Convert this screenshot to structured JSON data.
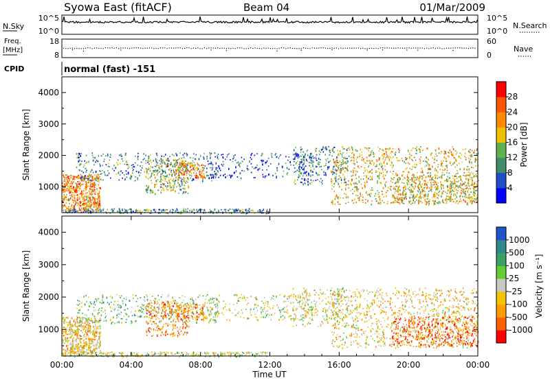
{
  "header": {
    "station": "Syowa East (fitACF)",
    "beam": "Beam 04",
    "date": "01/Mar/2009"
  },
  "noise_panel": {
    "left_label": "N.Sky",
    "left_ticks": [
      "10^5",
      "10^0"
    ],
    "right_ticks": [
      "10^5",
      "10^0"
    ],
    "right_label": "N.Search"
  },
  "freq_panel": {
    "left_label_line1": "Freq.",
    "left_label_line2": "[MHz]",
    "left_ticks": [
      "18",
      "8"
    ],
    "right_ticks": [
      "60",
      "0"
    ],
    "right_label": "Nave"
  },
  "cpid": {
    "label": "CPID",
    "value": "normal (fast) -151"
  },
  "x_axis": {
    "tick_labels": [
      "00:00",
      "04:00",
      "08:00",
      "12:00",
      "16:00",
      "20:00",
      "00:00"
    ],
    "tick_hours": [
      0,
      4,
      8,
      12,
      16,
      20,
      24
    ],
    "title": "Time UT"
  },
  "colors": {
    "power_scale": [
      "#0000ff",
      "#1e4fc8",
      "#3c8f6a",
      "#5fb34c",
      "#f0c000",
      "#ff8c00",
      "#ff5500",
      "#ff0000"
    ],
    "velocity_scale": [
      "#ff0000",
      "#ff6000",
      "#ff9c00",
      "#f5c300",
      "#c8c8c8",
      "#66cc33",
      "#3aa06a",
      "#2f8a8a",
      "#1f55c8"
    ]
  },
  "chart_data": [
    {
      "type": "heatmap",
      "name": "power",
      "ylabel": "Slant Range [km]",
      "y_ticks": [
        1000,
        2000,
        3000,
        4000
      ],
      "ylim": [
        180,
        4500
      ],
      "xlim": [
        0,
        24
      ],
      "colorbar": {
        "label": "Power [dB]",
        "ticks": [
          "28",
          "24",
          "20",
          "16",
          "12",
          "8",
          "4"
        ],
        "range": [
          0,
          30
        ]
      }
    },
    {
      "type": "heatmap",
      "name": "velocity",
      "ylabel": "Slant Range [km]",
      "y_ticks": [
        1000,
        2000,
        3000,
        4000
      ],
      "ylim": [
        180,
        4500
      ],
      "xlim": [
        0,
        24
      ],
      "colorbar": {
        "label": "Velocity [m s⁻¹]",
        "ticks": [
          "1000",
          "500",
          "100",
          "25",
          "-25",
          "-100",
          "-500",
          "-1000"
        ]
      }
    }
  ]
}
